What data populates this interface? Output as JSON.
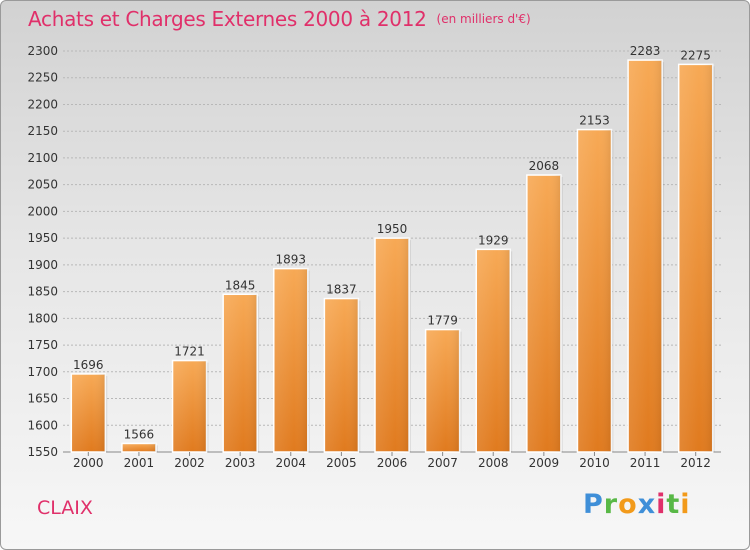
{
  "title": "Achats et Charges Externes 2000 à 2012",
  "unit_note": "(en milliers d'€)",
  "commune": "CLAIX",
  "logo": {
    "parts": [
      "P",
      "r",
      "o",
      "x",
      "i",
      "t",
      "i"
    ]
  },
  "colors": {
    "title": "#e0306a",
    "bar_top": "#f7a955",
    "bar_bottom": "#e07a1e",
    "grid": "#b8b8b8"
  },
  "chart_data": {
    "type": "bar",
    "categories": [
      "2000",
      "2001",
      "2002",
      "2003",
      "2004",
      "2005",
      "2006",
      "2007",
      "2008",
      "2009",
      "2010",
      "2011",
      "2012"
    ],
    "values": [
      1696,
      1566,
      1721,
      1845,
      1893,
      1837,
      1950,
      1779,
      1929,
      2068,
      2153,
      2283,
      2275
    ],
    "yticks": [
      1550,
      1600,
      1650,
      1700,
      1750,
      1800,
      1850,
      1900,
      1950,
      2000,
      2050,
      2100,
      2150,
      2200,
      2250,
      2300
    ],
    "ylim": [
      1550,
      2300
    ],
    "grid": true,
    "data_labels": true
  }
}
